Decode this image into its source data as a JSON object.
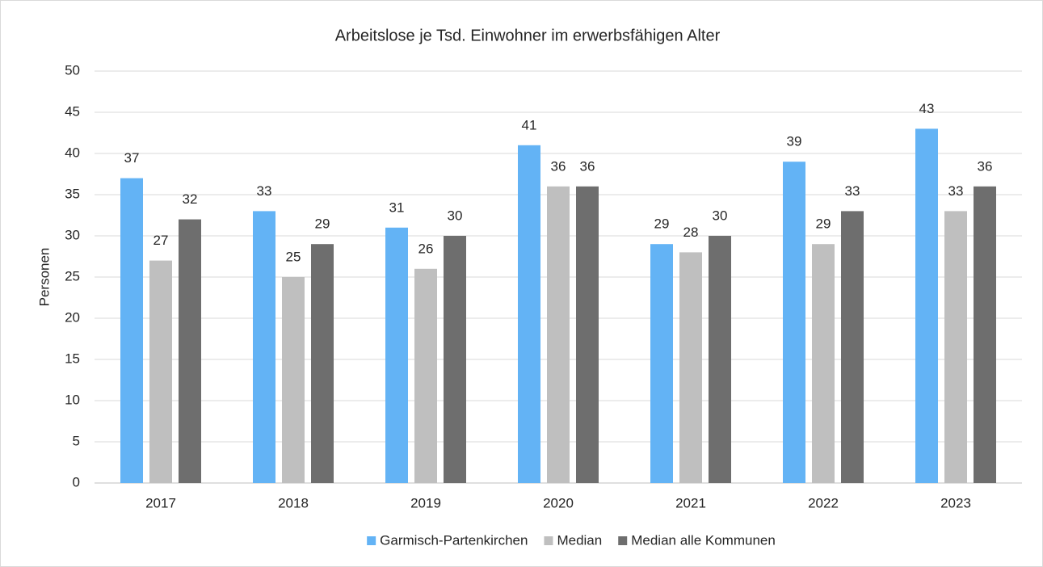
{
  "chart_data": {
    "type": "bar",
    "title": "Arbeitslose je Tsd. Einwohner im erwerbsfähigen Alter",
    "y_label": "Personen",
    "categories": [
      "2017",
      "2018",
      "2019",
      "2020",
      "2021",
      "2022",
      "2023"
    ],
    "series": [
      {
        "name": "Garmisch-Partenkirchen",
        "color": "#63b3f5",
        "values": [
          37,
          33,
          31,
          41,
          29,
          39,
          43
        ]
      },
      {
        "name": "Median",
        "color": "#bfbfbf",
        "values": [
          27,
          25,
          26,
          36,
          28,
          29,
          33
        ]
      },
      {
        "name": "Median alle Kommunen",
        "color": "#6e6e6e",
        "values": [
          32,
          29,
          30,
          36,
          30,
          33,
          36
        ]
      }
    ],
    "ylim": [
      0,
      50
    ],
    "yticks": [
      0,
      5,
      10,
      15,
      20,
      25,
      30,
      35,
      40,
      45,
      50
    ],
    "grid": true,
    "legend": "bottom"
  }
}
